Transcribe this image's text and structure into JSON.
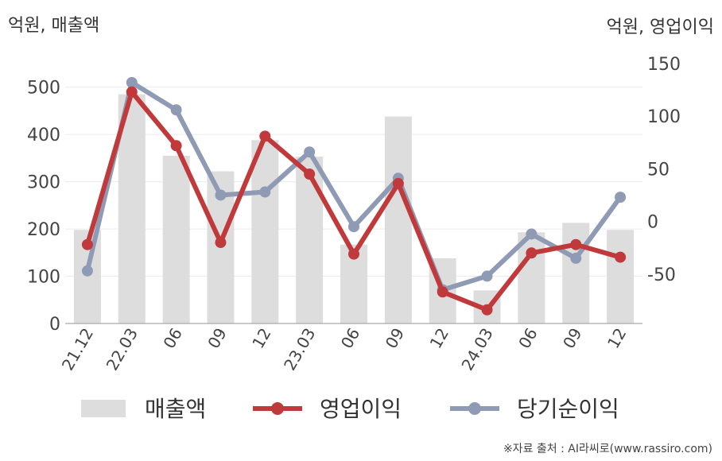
{
  "chart_data": {
    "type": "bar+line",
    "ylabel_left": "억원, 매출액",
    "ylabel_right": "억원, 영업이익",
    "categories": [
      "21.12",
      "22.03",
      "06",
      "09",
      "12",
      "23.03",
      "06",
      "09",
      "12",
      "24.03",
      "06",
      "09",
      "12"
    ],
    "ylim_left": [
      0,
      550
    ],
    "yticks_left": [
      "0",
      "100",
      "200",
      "300",
      "400",
      "500"
    ],
    "ylim_right": [
      -97,
      150
    ],
    "yticks_right": [
      "-50",
      "0",
      "50",
      "100",
      "150"
    ],
    "grid": true,
    "legend_position": "bottom",
    "series": [
      {
        "name": "매출액",
        "kind": "bar",
        "axis": "left",
        "color": "#dddddd",
        "values": [
          198,
          485,
          355,
          322,
          388,
          353,
          167,
          438,
          138,
          70,
          193,
          213,
          198
        ]
      },
      {
        "name": "영업이익",
        "kind": "line",
        "axis": "right",
        "color": "#c0393b",
        "values": [
          -22,
          123,
          72,
          -20,
          81,
          45,
          -31,
          36,
          -67,
          -84,
          -30,
          -22,
          -34
        ]
      },
      {
        "name": "당기순이익",
        "kind": "line",
        "axis": "right",
        "color": "#8f9bb5",
        "values": [
          -47,
          132,
          106,
          25,
          28,
          66,
          -5,
          41,
          -65,
          -52,
          -12,
          -35,
          23
        ]
      }
    ]
  },
  "source": "※자료 출처 : AI라씨로(www.rassiro.com)"
}
